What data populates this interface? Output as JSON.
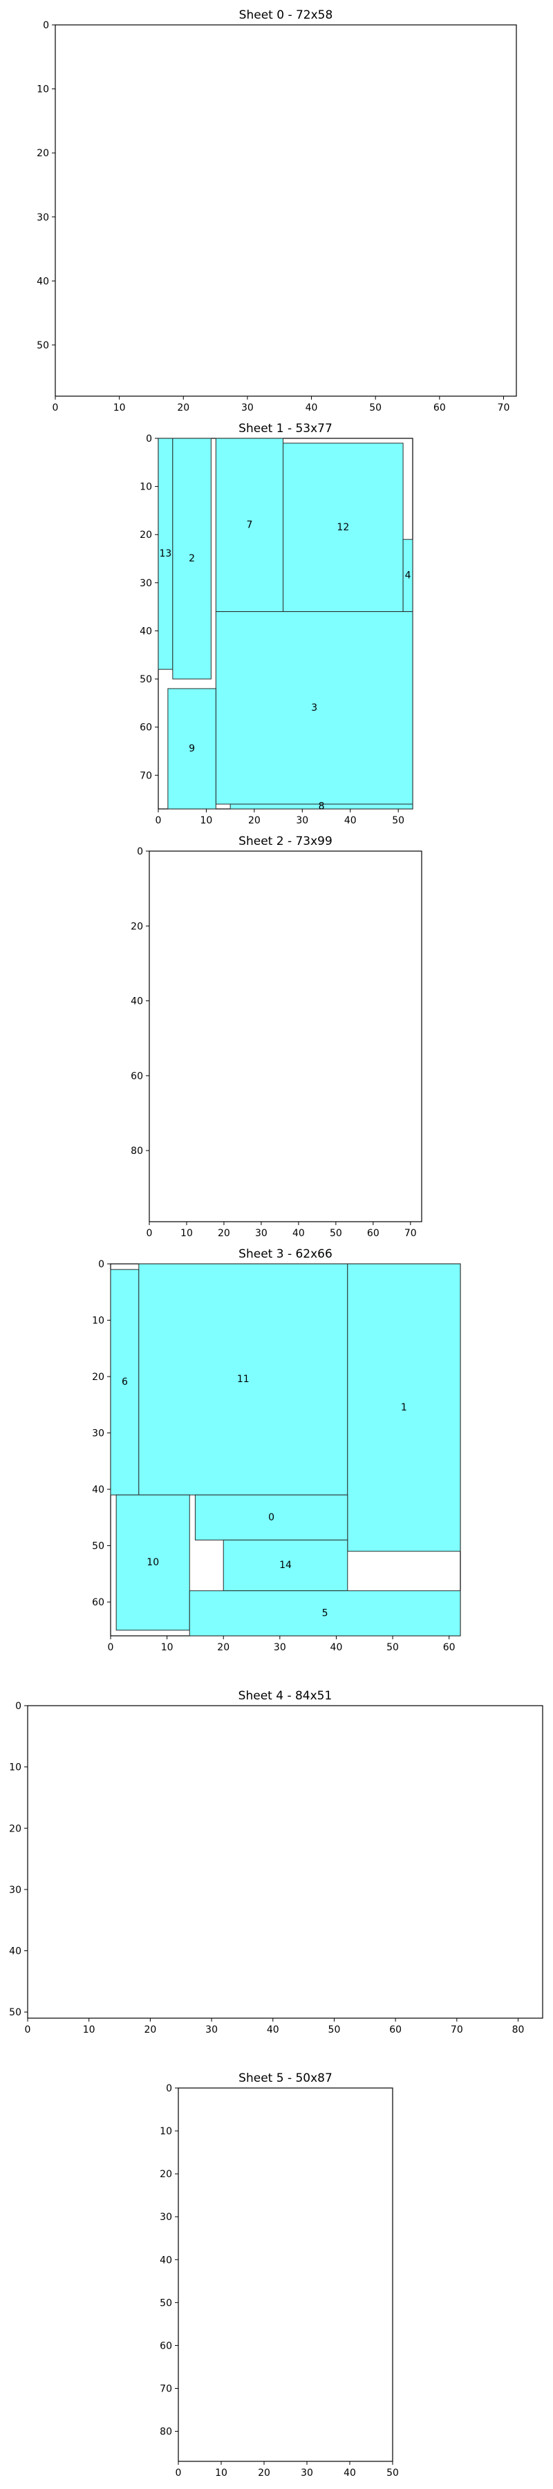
{
  "chart_data": [
    {
      "type": "rectangles",
      "title": "Sheet 0 - 72x58",
      "width": 72,
      "height": 58,
      "xticks": [
        0,
        10,
        20,
        30,
        40,
        50,
        60,
        70
      ],
      "yticks": [
        0,
        10,
        20,
        30,
        40,
        50
      ],
      "pieces": []
    },
    {
      "type": "rectangles",
      "title": "Sheet 1 - 53x77",
      "width": 53,
      "height": 77,
      "xticks": [
        0,
        10,
        20,
        30,
        40,
        50
      ],
      "yticks": [
        0,
        10,
        20,
        30,
        40,
        50,
        60,
        70
      ],
      "pieces": [
        {
          "label": "13",
          "x": 0,
          "y": 0,
          "w": 3,
          "h": 48
        },
        {
          "label": "2",
          "x": 3,
          "y": 0,
          "w": 8,
          "h": 50
        },
        {
          "label": "7",
          "x": 12,
          "y": 0,
          "w": 14,
          "h": 36
        },
        {
          "label": "12",
          "x": 26,
          "y": 1,
          "w": 25,
          "h": 35
        },
        {
          "label": "4",
          "x": 51,
          "y": 21,
          "w": 2,
          "h": 15
        },
        {
          "label": "3",
          "x": 12,
          "y": 36,
          "w": 41,
          "h": 40
        },
        {
          "label": "9",
          "x": 2,
          "y": 52,
          "w": 10,
          "h": 25
        },
        {
          "label": "8",
          "x": 15,
          "y": 76,
          "w": 38,
          "h": 1
        }
      ]
    },
    {
      "type": "rectangles",
      "title": "Sheet 2 - 73x99",
      "width": 73,
      "height": 99,
      "xticks": [
        0,
        10,
        20,
        30,
        40,
        50,
        60,
        70
      ],
      "yticks": [
        0,
        20,
        40,
        60,
        80
      ],
      "pieces": []
    },
    {
      "type": "rectangles",
      "title": "Sheet 3 - 62x66",
      "width": 62,
      "height": 66,
      "xticks": [
        0,
        10,
        20,
        30,
        40,
        50,
        60
      ],
      "yticks": [
        0,
        10,
        20,
        30,
        40,
        50,
        60
      ],
      "pieces": [
        {
          "label": "6",
          "x": 0,
          "y": 1,
          "w": 5,
          "h": 40
        },
        {
          "label": "11",
          "x": 5,
          "y": 0,
          "w": 37,
          "h": 41
        },
        {
          "label": "1",
          "x": 42,
          "y": 0,
          "w": 20,
          "h": 51
        },
        {
          "label": "0",
          "x": 15,
          "y": 41,
          "w": 27,
          "h": 8
        },
        {
          "label": "10",
          "x": 1,
          "y": 41,
          "w": 13,
          "h": 24
        },
        {
          "label": "14",
          "x": 20,
          "y": 49,
          "w": 22,
          "h": 9
        },
        {
          "label": "5",
          "x": 14,
          "y": 58,
          "w": 48,
          "h": 8
        }
      ]
    },
    {
      "type": "rectangles",
      "title": "Sheet 4 - 84x51",
      "width": 84,
      "height": 51,
      "xticks": [
        0,
        10,
        20,
        30,
        40,
        50,
        60,
        70,
        80
      ],
      "yticks": [
        0,
        10,
        20,
        30,
        40,
        50
      ],
      "pieces": []
    },
    {
      "type": "rectangles",
      "title": "Sheet 5 - 50x87",
      "width": 50,
      "height": 87,
      "xticks": [
        0,
        10,
        20,
        30,
        40,
        50
      ],
      "yticks": [
        0,
        10,
        20,
        30,
        40,
        50,
        60,
        70,
        80
      ],
      "pieces": []
    }
  ]
}
